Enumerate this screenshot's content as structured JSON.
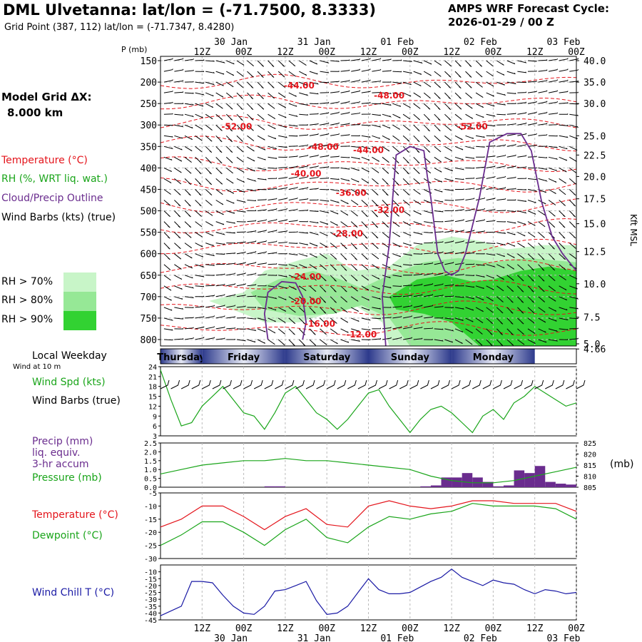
{
  "header": {
    "title": "DML Ulvetanna:  lat/lon = (-71.7500, 8.3333)",
    "subtitle": "Grid Point (387, 112) lat/lon = (-71.7347, 8.4280)",
    "cycle_label": "AMPS WRF Forecast Cycle:",
    "cycle_value": "2026-01-29 / 00  Z",
    "grid_label": "Model Grid ΔX:",
    "grid_value": "8.000 km"
  },
  "legend": {
    "temperature": "Temperature (°C)",
    "rh": "RH (%, WRT liq. wat.)",
    "cloud": "Cloud/Precip Outline",
    "wind": "Wind Barbs (kts) (true)",
    "rh_levels": [
      {
        "label": "RH > 70%",
        "color": "#c8f5c8"
      },
      {
        "label": "RH > 80%",
        "color": "#96e896"
      },
      {
        "label": "RH > 90%",
        "color": "#32d232"
      }
    ]
  },
  "colors": {
    "temperature": "#e4141b",
    "rh": "#1aa51a",
    "cloud": "#6a2c8e",
    "wind_chill": "#1a1aa5",
    "precip": "#6a2c8e"
  },
  "panel_labels": {
    "local_weekday": "Local Weekday",
    "wind_at": "Wind at 10 m",
    "wind_spd": "Wind Spd (kts)",
    "wind_barbs": "Wind Barbs (true)",
    "precip1": "Precip (mm)",
    "precip2": "liq. equiv.",
    "precip3": "3-hr accum",
    "pressure": "Pressure (mb)",
    "pressure_unit": "(mb)",
    "temp": "Temperature (°C)",
    "dewpoint": "Dewpoint (°C)",
    "windchill": "Wind Chill T (°C)"
  },
  "weekdays": [
    "Thursday",
    "Friday",
    "Saturday",
    "Sunday",
    "Monday"
  ],
  "chart_data": [
    {
      "type": "heatmap",
      "ylabel": "P (mb)",
      "y2label": "Kft MSL",
      "x_ticks_hour": [
        "12Z",
        "00Z",
        "12Z",
        "00Z",
        "12Z",
        "00Z",
        "12Z",
        "00Z",
        "12Z",
        "00Z"
      ],
      "x_ticks_day": [
        "30 Jan",
        "31 Jan",
        "01 Feb",
        "02 Feb",
        "03 Feb"
      ],
      "x_hours": [
        12,
        24,
        36,
        48,
        60,
        72,
        84,
        96,
        108,
        120
      ],
      "day_hours": [
        24,
        48,
        72,
        96,
        120
      ],
      "xlim": [
        0,
        120
      ],
      "pressure_levels": [
        150,
        200,
        250,
        300,
        350,
        400,
        450,
        500,
        550,
        600,
        650,
        700,
        750,
        800
      ],
      "ylim": [
        815,
        140
      ],
      "kft_ticks": [
        {
          "p": 150,
          "label": "40.0"
        },
        {
          "p": 200,
          "label": "35.0"
        },
        {
          "p": 250,
          "label": "30.0"
        },
        {
          "p": 325,
          "label": "25.0"
        },
        {
          "p": 370,
          "label": "22.5"
        },
        {
          "p": 420,
          "label": "20.0"
        },
        {
          "p": 472,
          "label": "17.5"
        },
        {
          "p": 530,
          "label": "15.0"
        },
        {
          "p": 595,
          "label": "12.5"
        },
        {
          "p": 670,
          "label": "10.0"
        },
        {
          "p": 748,
          "label": "7.5"
        },
        {
          "p": 810,
          "label": "5.0"
        },
        {
          "p": 822,
          "label": "4.66"
        }
      ],
      "temp_labels": [
        {
          "x": 40,
          "p": 215,
          "label": "-44.00"
        },
        {
          "x": 66,
          "p": 238,
          "label": "-48.00"
        },
        {
          "x": 22,
          "p": 310,
          "label": "-52.00"
        },
        {
          "x": 90,
          "p": 310,
          "label": "-52.00"
        },
        {
          "x": 47,
          "p": 358,
          "label": "-48.00"
        },
        {
          "x": 60,
          "p": 365,
          "label": "-44.00"
        },
        {
          "x": 42,
          "p": 420,
          "label": "-40.00"
        },
        {
          "x": 55,
          "p": 465,
          "label": "-36.00"
        },
        {
          "x": 66,
          "p": 505,
          "label": "-32.00"
        },
        {
          "x": 54,
          "p": 560,
          "label": "-28.00"
        },
        {
          "x": 42,
          "p": 660,
          "label": "-24.00"
        },
        {
          "x": 42,
          "p": 718,
          "label": "-20.00"
        },
        {
          "x": 46,
          "p": 770,
          "label": "-16.00"
        },
        {
          "x": 58,
          "p": 795,
          "label": "-12.00"
        }
      ]
    },
    {
      "type": "line",
      "title": "",
      "ylabel": "Wind Spd (kts)",
      "yticks": [
        3,
        6,
        9,
        12,
        15,
        18,
        21,
        24
      ],
      "ylim": [
        3,
        24
      ],
      "series": [
        {
          "name": "Wind Spd (kts)",
          "x": [
            0,
            3,
            6,
            9,
            12,
            15,
            18,
            21,
            24,
            27,
            30,
            33,
            36,
            39,
            42,
            45,
            48,
            51,
            54,
            57,
            60,
            63,
            66,
            69,
            72,
            75,
            78,
            81,
            84,
            87,
            90,
            93,
            96,
            99,
            102,
            105,
            108,
            111,
            114,
            117,
            120
          ],
          "values": [
            23,
            14,
            6,
            7,
            12,
            15,
            18,
            14,
            10,
            9,
            5,
            10,
            16,
            18,
            14,
            10,
            8,
            5,
            8,
            12,
            16,
            17,
            12,
            8,
            4,
            8,
            11,
            12,
            10,
            7,
            4,
            9,
            11,
            8,
            13,
            15,
            18,
            16,
            14,
            12,
            13
          ]
        }
      ]
    },
    {
      "type": "bar",
      "ylabel": "Precip (mm)",
      "yticks": [
        0.0,
        0.5,
        1.0,
        1.5,
        2.0,
        2.5
      ],
      "ylim": [
        0,
        2.5
      ],
      "y2label": "Pressure (mb)",
      "y2ticks": [
        805,
        810,
        815,
        820,
        825
      ],
      "y2lim": [
        805,
        825
      ],
      "series": [
        {
          "name": "Precip (mm)",
          "x": [
            30,
            33,
            75,
            78,
            81,
            84,
            87,
            90,
            93,
            96,
            99,
            102,
            105,
            108,
            111,
            114,
            117
          ],
          "values": [
            0.05,
            0.05,
            0.05,
            0.1,
            0.55,
            0.55,
            0.8,
            0.55,
            0.3,
            0.05,
            0.1,
            0.95,
            0.8,
            1.2,
            0.3,
            0.2,
            0.15
          ]
        },
        {
          "name": "Pressure (mb)",
          "x": [
            0,
            6,
            12,
            18,
            24,
            30,
            36,
            42,
            48,
            54,
            60,
            66,
            72,
            78,
            84,
            90,
            96,
            102,
            108,
            114,
            120
          ],
          "values": [
            811,
            813,
            815,
            816,
            817,
            817,
            818,
            817,
            817,
            816,
            815,
            814,
            813,
            810,
            808,
            807,
            807,
            808,
            810,
            812,
            814
          ]
        }
      ]
    },
    {
      "type": "line",
      "yticks": [
        -30,
        -25,
        -20,
        -15,
        -10,
        -5
      ],
      "ylim": [
        -30,
        -5
      ],
      "series": [
        {
          "name": "Temperature (°C)",
          "x": [
            0,
            6,
            12,
            18,
            24,
            30,
            36,
            42,
            48,
            54,
            60,
            66,
            72,
            78,
            84,
            90,
            96,
            102,
            108,
            114,
            120
          ],
          "values": [
            -18,
            -15,
            -10,
            -10,
            -14,
            -19,
            -14,
            -11,
            -17,
            -18,
            -10,
            -8,
            -10,
            -11,
            -10,
            -8,
            -8,
            -9,
            -9,
            -9,
            -12
          ]
        },
        {
          "name": "Dewpoint (°C)",
          "x": [
            0,
            6,
            12,
            18,
            24,
            30,
            36,
            42,
            48,
            54,
            60,
            66,
            72,
            78,
            84,
            90,
            96,
            102,
            108,
            114,
            120
          ],
          "values": [
            -25,
            -21,
            -16,
            -16,
            -20,
            -25,
            -19,
            -15,
            -22,
            -24,
            -18,
            -14,
            -15,
            -13,
            -12,
            -9,
            -10,
            -10,
            -10,
            -11,
            -15
          ]
        }
      ]
    },
    {
      "type": "line",
      "yticks": [
        -45,
        -40,
        -35,
        -30,
        -25,
        -20,
        -15,
        -10
      ],
      "ylim": [
        -45,
        -5
      ],
      "series": [
        {
          "name": "Wind Chill T (°C)",
          "x": [
            0,
            6,
            9,
            12,
            15,
            18,
            21,
            24,
            27,
            30,
            33,
            36,
            39,
            42,
            45,
            48,
            51,
            54,
            57,
            60,
            63,
            66,
            69,
            72,
            75,
            78,
            81,
            84,
            87,
            90,
            93,
            96,
            99,
            102,
            105,
            108,
            111,
            114,
            117,
            120
          ],
          "values": [
            -42,
            -35,
            -17,
            -17,
            -18,
            -27,
            -35,
            -40,
            -41,
            -35,
            -24,
            -23,
            -20,
            -17,
            -31,
            -41,
            -40,
            -35,
            -25,
            -15,
            -23,
            -26,
            -26,
            -25,
            -21,
            -17,
            -14,
            -8,
            -14,
            -17,
            -20,
            -16,
            -18,
            -19,
            -23,
            -26,
            -23,
            -24,
            -26,
            -25
          ]
        }
      ]
    }
  ]
}
